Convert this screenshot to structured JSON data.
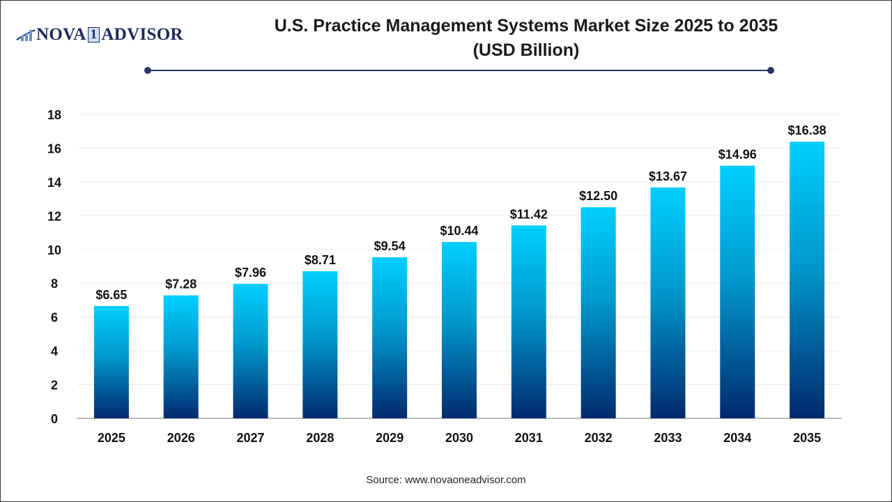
{
  "logo": {
    "text_left": "NOVA",
    "text_mid": "1",
    "text_right": "ADVISOR"
  },
  "title_line1": "U.S. Practice Management Systems Market Size 2025 to 2035",
  "title_line2": "(USD Billion)",
  "source": "Source: www.novaoneadvisor.com",
  "colors": {
    "bar_top": "#00cfff",
    "bar_bottom": "#002a6e",
    "accent": "#2b3467"
  },
  "chart_data": {
    "type": "bar",
    "title": "U.S. Practice Management Systems Market Size 2025 to 2035 (USD Billion)",
    "categories": [
      "2025",
      "2026",
      "2027",
      "2028",
      "2029",
      "2030",
      "2031",
      "2032",
      "2033",
      "2034",
      "2035"
    ],
    "values": [
      6.65,
      7.28,
      7.96,
      8.71,
      9.54,
      10.44,
      11.42,
      12.5,
      13.67,
      14.96,
      16.38
    ],
    "data_labels": [
      "$6.65",
      "$7.28",
      "$7.96",
      "$8.71",
      "$9.54",
      "$10.44",
      "$11.42",
      "$12.50",
      "$13.67",
      "$14.96",
      "$16.38"
    ],
    "yticks": [
      0,
      2,
      4,
      6,
      8,
      10,
      12,
      14,
      16,
      18
    ],
    "ylim": [
      0,
      18
    ],
    "xlabel": "",
    "ylabel": "",
    "grid": true
  }
}
